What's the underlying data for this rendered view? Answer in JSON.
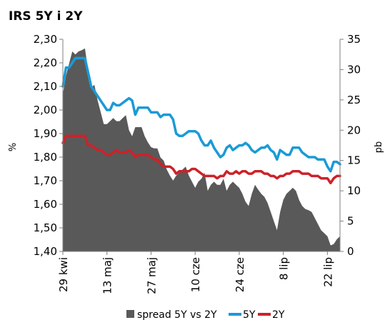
{
  "chart_data": {
    "type": "line",
    "title": "IRS 5Y i 2Y",
    "ylabel_left": "%",
    "ylabel_right": "pb",
    "ylim_left": [
      1.4,
      2.3
    ],
    "yticks_left": [
      "1,40",
      "1,50",
      "1,60",
      "1,70",
      "1,80",
      "1,90",
      "2,00",
      "2,10",
      "2,20",
      "2,30"
    ],
    "ylim_right": [
      0,
      35
    ],
    "yticks_right": [
      "0",
      "5",
      "10",
      "15",
      "20",
      "25",
      "30",
      "35"
    ],
    "x_ticks": [
      {
        "label": "29 kwi",
        "day": 0
      },
      {
        "label": "13 maj",
        "day": 14
      },
      {
        "label": "27 maj",
        "day": 28
      },
      {
        "label": "10 cze",
        "day": 42
      },
      {
        "label": "24 cze",
        "day": 56
      },
      {
        "label": "8 lip",
        "day": 70
      },
      {
        "label": "22 lip",
        "day": 84
      }
    ],
    "x_days": [
      0,
      1,
      2,
      3,
      4,
      5,
      6,
      7,
      8,
      9,
      10,
      11,
      12,
      13,
      14,
      15,
      16,
      17,
      18,
      19,
      20,
      21,
      22,
      23,
      24,
      25,
      26,
      27,
      28,
      29,
      30,
      31,
      32,
      33,
      34,
      35,
      36,
      37,
      38,
      39,
      40,
      41,
      42,
      43,
      44,
      45,
      46,
      47,
      48,
      49,
      50,
      51,
      52,
      53,
      54,
      55,
      56,
      57,
      58,
      59,
      60,
      61,
      62,
      63,
      64,
      65,
      66,
      67,
      68,
      69,
      70,
      71,
      72,
      73,
      74,
      75,
      76,
      77,
      78,
      79,
      80,
      81,
      82,
      83,
      84,
      85,
      86,
      87,
      88
    ],
    "legend_position": "bottom",
    "series": [
      {
        "name": "spread 5Y vs 2Y",
        "type": "area",
        "axis": "right",
        "color": "#595959",
        "values": [
          26,
          29,
          31,
          33,
          32.5,
          33,
          33.2,
          33.5,
          30,
          27,
          27.5,
          25,
          23,
          21,
          21,
          21.5,
          22,
          21.5,
          21.5,
          22,
          22.5,
          20,
          19,
          20.5,
          20.5,
          20.5,
          19,
          18,
          17.2,
          17,
          17,
          15.5,
          15,
          13.5,
          12.5,
          11.7,
          12.5,
          13,
          13.5,
          14,
          12.5,
          11.5,
          10.5,
          11.5,
          12,
          13,
          10,
          11,
          11.5,
          11,
          11,
          12,
          10,
          11,
          11.5,
          11,
          10.5,
          9.5,
          8.2,
          7.5,
          9.5,
          11,
          10.2,
          9.5,
          9,
          8,
          6.5,
          5,
          3.5,
          6.5,
          8.5,
          9.5,
          10,
          10.5,
          10,
          8.5,
          7.5,
          7,
          6.8,
          6.5,
          5.5,
          4.5,
          3.5,
          3,
          2.5,
          1,
          1.2,
          2,
          2.5
        ]
      },
      {
        "name": "5Y",
        "type": "line",
        "axis": "left",
        "color": "#1b9ad6",
        "values": [
          2.1,
          2.18,
          2.18,
          2.2,
          2.22,
          2.22,
          2.22,
          2.22,
          2.16,
          2.1,
          2.08,
          2.06,
          2.04,
          2.02,
          2.0,
          2.0,
          2.03,
          2.02,
          2.02,
          2.03,
          2.04,
          2.05,
          2.04,
          1.98,
          2.01,
          2.01,
          2.01,
          2.01,
          1.99,
          1.99,
          1.99,
          1.97,
          1.98,
          1.98,
          1.98,
          1.96,
          1.9,
          1.89,
          1.89,
          1.9,
          1.91,
          1.91,
          1.91,
          1.9,
          1.87,
          1.85,
          1.85,
          1.87,
          1.84,
          1.82,
          1.8,
          1.81,
          1.84,
          1.85,
          1.83,
          1.84,
          1.85,
          1.85,
          1.86,
          1.85,
          1.83,
          1.82,
          1.83,
          1.84,
          1.84,
          1.85,
          1.83,
          1.82,
          1.79,
          1.83,
          1.82,
          1.81,
          1.81,
          1.84,
          1.84,
          1.84,
          1.82,
          1.81,
          1.8,
          1.8,
          1.8,
          1.79,
          1.79,
          1.79,
          1.76,
          1.74,
          1.78,
          1.78,
          1.77
        ]
      },
      {
        "name": "2Y",
        "type": "line",
        "axis": "left",
        "color": "#cc2229",
        "values": [
          1.86,
          1.89,
          1.89,
          1.89,
          1.89,
          1.89,
          1.89,
          1.89,
          1.85,
          1.85,
          1.84,
          1.83,
          1.83,
          1.82,
          1.81,
          1.81,
          1.82,
          1.83,
          1.82,
          1.82,
          1.82,
          1.83,
          1.82,
          1.8,
          1.81,
          1.81,
          1.81,
          1.81,
          1.8,
          1.79,
          1.79,
          1.77,
          1.76,
          1.76,
          1.76,
          1.75,
          1.73,
          1.74,
          1.74,
          1.74,
          1.74,
          1.75,
          1.75,
          1.74,
          1.73,
          1.72,
          1.72,
          1.72,
          1.72,
          1.71,
          1.72,
          1.72,
          1.74,
          1.73,
          1.73,
          1.74,
          1.73,
          1.74,
          1.74,
          1.73,
          1.73,
          1.74,
          1.74,
          1.74,
          1.73,
          1.73,
          1.72,
          1.72,
          1.71,
          1.72,
          1.72,
          1.73,
          1.73,
          1.74,
          1.74,
          1.74,
          1.73,
          1.73,
          1.73,
          1.72,
          1.72,
          1.72,
          1.71,
          1.71,
          1.71,
          1.69,
          1.71,
          1.72,
          1.72
        ]
      }
    ]
  }
}
